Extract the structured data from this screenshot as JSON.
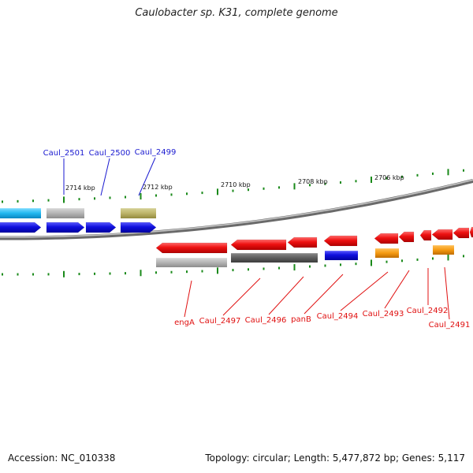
{
  "title": "Caulobacter sp. K31, complete genome",
  "footer": {
    "accession": "Accession: NC_010338",
    "summary": "Topology: circular; Length: 5,477,872 bp; Genes: 5,117"
  },
  "colors": {
    "forward_label": "#1a1ad0",
    "reverse_label": "#e01010",
    "tick": "#1a8a1a",
    "backbone": "#8a8a8a"
  },
  "scale_labels": [
    {
      "text": "2714 kbp",
      "kbp": 2714
    },
    {
      "text": "2712 kbp",
      "kbp": 2712
    },
    {
      "text": "2710 kbp",
      "kbp": 2710
    },
    {
      "text": "2708 kbp",
      "kbp": 2708
    },
    {
      "text": "2706 kbp",
      "kbp": 2706
    }
  ],
  "forward_genes": [
    {
      "label": "Caul_2501",
      "color": "#1010dd"
    },
    {
      "label": "Caul_2500",
      "color": "#1010dd"
    },
    {
      "label": "Caul_2499",
      "color": "#1010dd"
    }
  ],
  "reverse_genes": [
    {
      "label": "engA",
      "color": "#ee1111"
    },
    {
      "label": "Caul_2497",
      "color": "#ee1111"
    },
    {
      "label": "Caul_2496",
      "color": "#ee1111"
    },
    {
      "label": "panB",
      "color": "#ee1111"
    },
    {
      "label": "Caul_2494",
      "color": "#ee1111"
    },
    {
      "label": "Caul_2493",
      "color": "#ee1111"
    },
    {
      "label": "Caul_2492",
      "color": "#ee1111"
    },
    {
      "label": "Caul_2491",
      "color": "#ee1111"
    }
  ]
}
